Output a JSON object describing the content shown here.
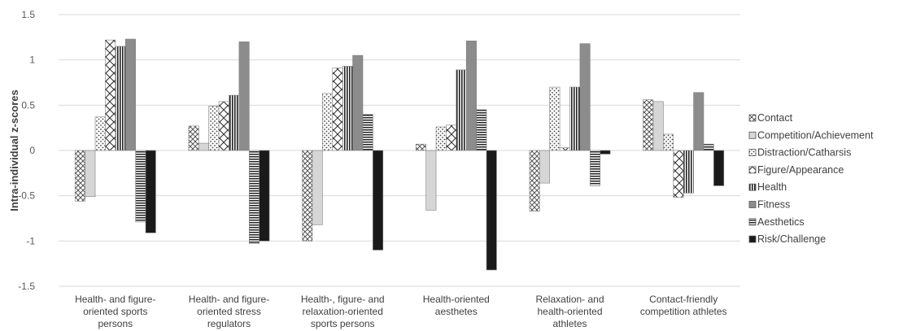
{
  "chart_data": {
    "type": "bar",
    "title": "",
    "xlabel": "",
    "ylabel": "Intra-individual z-scores",
    "ylim": [
      -1.5,
      1.5
    ],
    "yticks": [
      1.5,
      1,
      0.5,
      0,
      -0.5,
      -1,
      -1.5
    ],
    "grid": true,
    "legend_position": "right",
    "categories": [
      [
        "Health- and figure-",
        "oriented sports",
        "persons"
      ],
      [
        "Health- and figure-",
        "oriented stress",
        "regulators"
      ],
      [
        "Health-, figure- and",
        "relaxation-oriented",
        "sports persons"
      ],
      [
        "Health-oriented",
        "aesthetes"
      ],
      [
        "Relaxation- and",
        "health-oriented",
        "athletes"
      ],
      [
        "Contact-friendly",
        "competition athletes"
      ]
    ],
    "series": [
      {
        "name": "Contact",
        "pattern": "crosshatch",
        "values": [
          -0.56,
          0.27,
          -1.0,
          0.07,
          -0.67,
          0.56
        ]
      },
      {
        "name": "Competition/Achievement",
        "pattern": "lightgray",
        "values": [
          -0.51,
          0.08,
          -0.82,
          -0.66,
          -0.36,
          0.54
        ]
      },
      {
        "name": "Distraction/Catharsis",
        "pattern": "dots",
        "values": [
          0.37,
          0.49,
          0.63,
          0.26,
          0.7,
          0.18
        ]
      },
      {
        "name": "Figure/Appearance",
        "pattern": "diamond",
        "values": [
          1.22,
          0.54,
          0.91,
          0.28,
          0.03,
          -0.52
        ]
      },
      {
        "name": "Health",
        "pattern": "vertical",
        "values": [
          1.15,
          0.61,
          0.93,
          0.89,
          0.7,
          -0.47
        ]
      },
      {
        "name": "Fitness",
        "pattern": "darkgray",
        "values": [
          1.23,
          1.2,
          1.05,
          1.21,
          1.18,
          0.64
        ]
      },
      {
        "name": "Aesthetics",
        "pattern": "horizontal",
        "values": [
          -0.79,
          -1.03,
          0.4,
          0.45,
          -0.39,
          0.07
        ]
      },
      {
        "name": "Risk/Challenge",
        "pattern": "black",
        "values": [
          -0.91,
          -1.0,
          -1.1,
          -1.32,
          -0.04,
          -0.39
        ]
      }
    ]
  }
}
